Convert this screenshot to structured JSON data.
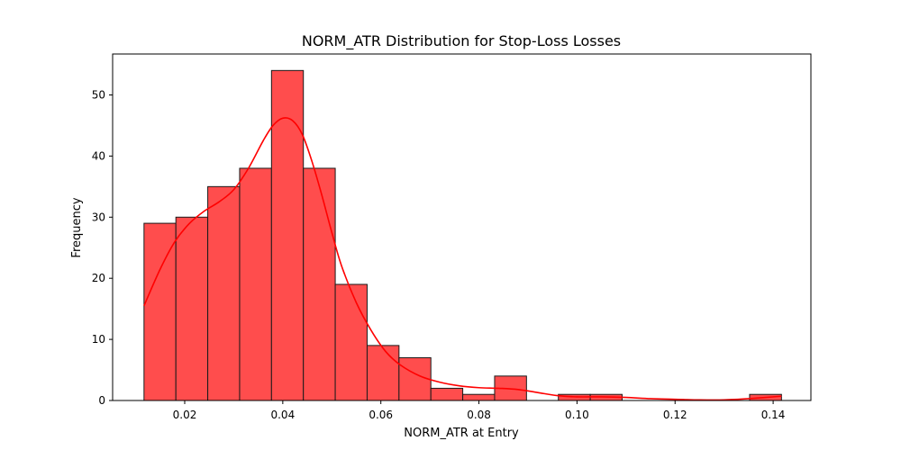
{
  "chart_data": {
    "type": "bar",
    "title": "NORM_ATR Distribution for Stop-Loss Losses",
    "xlabel": "NORM_ATR at Entry",
    "ylabel": "Frequency",
    "xlim": [
      0.0053,
      0.1477
    ],
    "ylim": [
      0,
      56.7
    ],
    "x_ticks": [
      0.02,
      0.04,
      0.06,
      0.08,
      0.1,
      0.12,
      0.14
    ],
    "x_tick_labels": [
      "0.02",
      "0.04",
      "0.06",
      "0.08",
      "0.10",
      "0.12",
      "0.14"
    ],
    "y_ticks": [
      0,
      10,
      20,
      30,
      40,
      50
    ],
    "y_tick_labels": [
      "0",
      "10",
      "20",
      "30",
      "40",
      "50"
    ],
    "bin_edges": [
      0.0117,
      0.0182,
      0.0247,
      0.0312,
      0.0377,
      0.0442,
      0.0507,
      0.0572,
      0.0637,
      0.0702,
      0.0767,
      0.0832,
      0.0897,
      0.0962,
      0.1027,
      0.1092,
      0.1157,
      0.1222,
      0.1287,
      0.1352,
      0.1417
    ],
    "values": [
      29,
      30,
      35,
      38,
      54,
      38,
      19,
      9,
      7,
      2,
      1,
      4,
      0,
      1,
      1,
      0,
      0,
      0,
      0,
      1
    ],
    "kde": {
      "x": [
        0.0117,
        0.015,
        0.018,
        0.021,
        0.024,
        0.027,
        0.03,
        0.033,
        0.036,
        0.038,
        0.04,
        0.042,
        0.044,
        0.046,
        0.048,
        0.05,
        0.052,
        0.055,
        0.058,
        0.061,
        0.064,
        0.068,
        0.072,
        0.076,
        0.08,
        0.084,
        0.088,
        0.092,
        0.096,
        0.1,
        0.105,
        0.11,
        0.115,
        0.12,
        0.125,
        0.13,
        0.135,
        0.1417
      ],
      "y": [
        15.5,
        21.5,
        26.0,
        29.0,
        31.0,
        32.5,
        34.5,
        38.0,
        42.5,
        45.0,
        46.2,
        45.8,
        43.5,
        39.0,
        33.5,
        27.5,
        22.0,
        16.0,
        11.5,
        8.0,
        5.8,
        4.0,
        3.0,
        2.4,
        2.1,
        2.0,
        1.8,
        1.3,
        0.8,
        0.6,
        0.6,
        0.5,
        0.3,
        0.2,
        0.1,
        0.1,
        0.3,
        0.7
      ]
    },
    "colors": {
      "bar_fill": "#ff4d4d",
      "bar_edge": "#1a1a1a",
      "kde_line": "#ff0000"
    },
    "grid": false,
    "legend": "none"
  }
}
